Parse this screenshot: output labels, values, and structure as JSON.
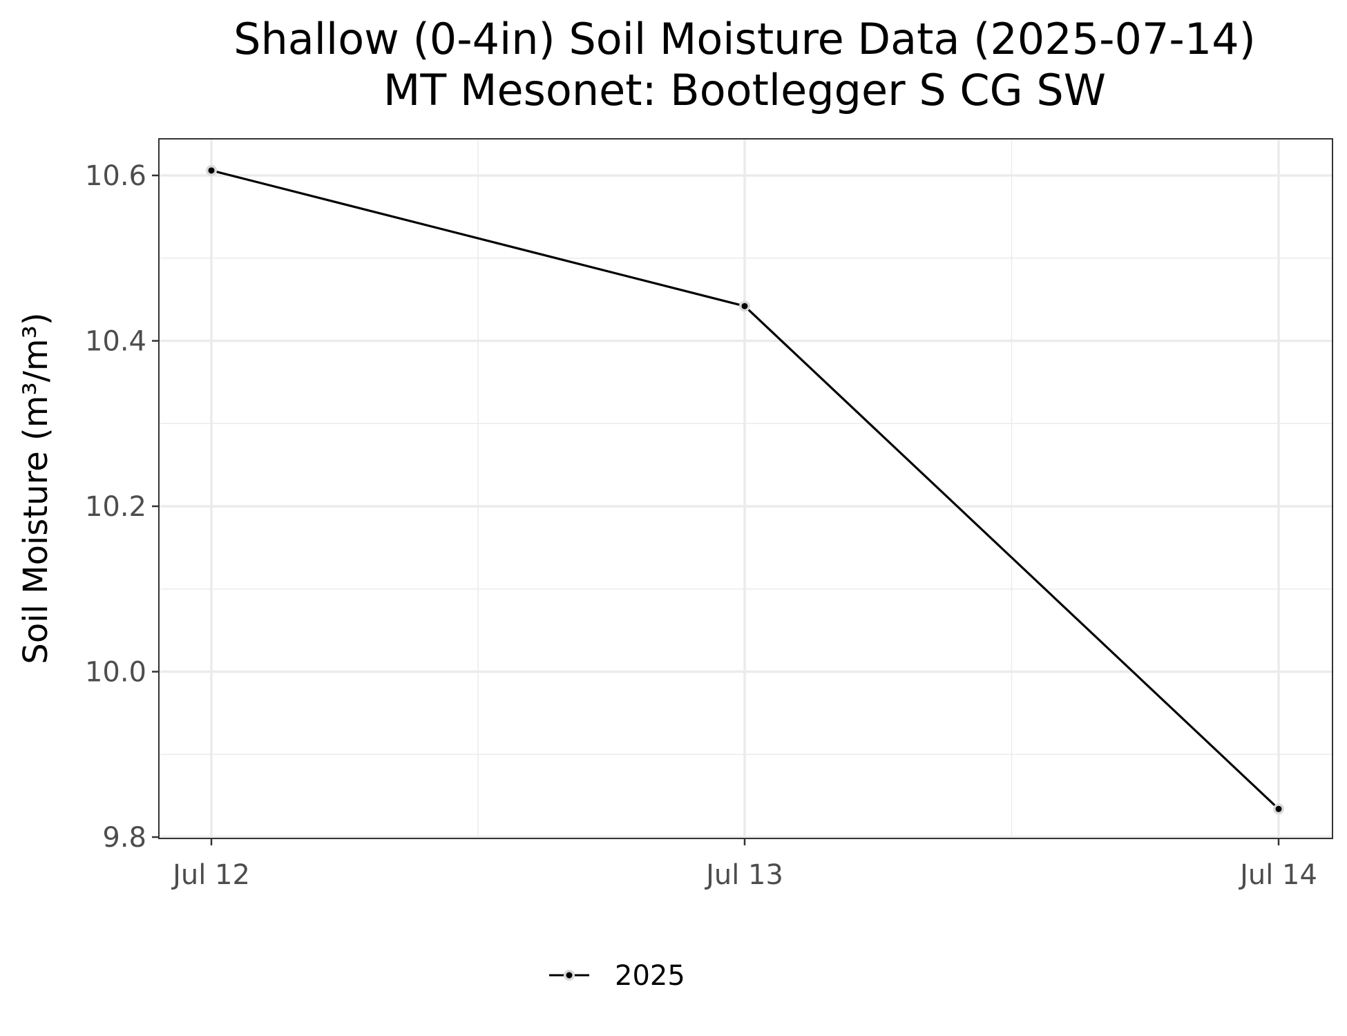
{
  "chart_data": {
    "type": "line",
    "title": "Shallow (0-4in) Soil Moisture Data (2025-07-14)",
    "subtitle": "MT Mesonet: Bootlegger S CG SW",
    "xlabel": "",
    "ylabel": "Soil Moisture (m³/m³)",
    "x": [
      "2025-07-12",
      "2025-07-13",
      "2025-07-14"
    ],
    "x_tick_labels": [
      "Jul 12",
      "Jul 13",
      "Jul 14"
    ],
    "series": [
      {
        "name": "2025",
        "color": "#000000",
        "values": [
          10.606,
          10.442,
          9.834
        ]
      }
    ],
    "ylim": [
      9.8,
      10.6
    ],
    "y_ticks": [
      "9.8",
      "10.0",
      "10.2",
      "10.4",
      "10.6"
    ],
    "grid": true,
    "legend_position": "bottom"
  }
}
